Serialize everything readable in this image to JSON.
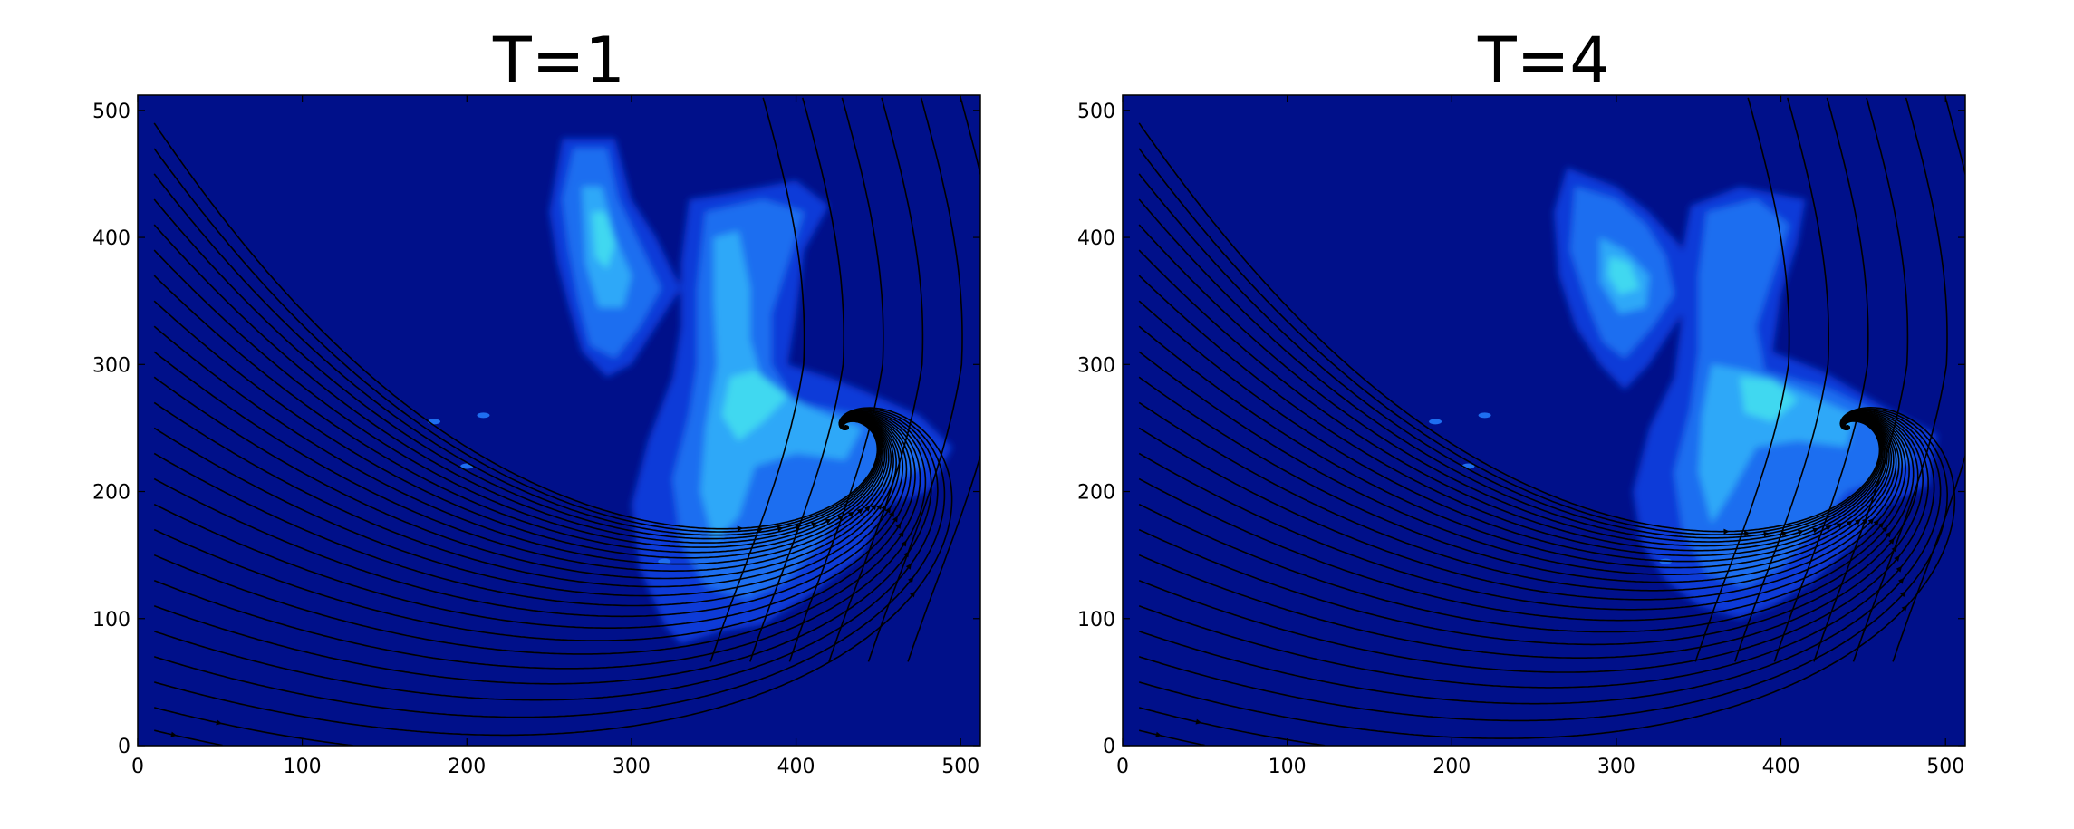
{
  "figure": {
    "panels": [
      {
        "title": "T=1",
        "xticks": [
          "0",
          "100",
          "200",
          "300",
          "400",
          "500"
        ],
        "yticks": [
          "0",
          "100",
          "200",
          "300",
          "400",
          "500"
        ]
      },
      {
        "title": "T=4",
        "xticks": [
          "0",
          "100",
          "200",
          "300",
          "400",
          "500"
        ],
        "yticks": [
          "0",
          "100",
          "200",
          "300",
          "400",
          "500"
        ]
      }
    ]
  },
  "colors": {
    "background_field": "#00108a",
    "low": "#0a3ad8",
    "mid": "#1e6ef0",
    "high": "#2ea8f8",
    "peak": "#3fd8f0",
    "streamline": "#000000"
  },
  "chart_data": [
    {
      "type": "heatmap",
      "overlay": "streamlines",
      "title": "T=1",
      "xlim": [
        0,
        512
      ],
      "ylim": [
        0,
        512
      ],
      "xticks": [
        0,
        100,
        200,
        300,
        400,
        500
      ],
      "yticks": [
        0,
        100,
        200,
        300,
        400,
        500
      ],
      "colormap": "jet",
      "grid": false,
      "regions": [
        {
          "name": "upper-left plume",
          "x_range": [
            255,
            330
          ],
          "y_range": [
            290,
            480
          ],
          "intensity": "high"
        },
        {
          "name": "upper-right plume",
          "x_range": [
            330,
            420
          ],
          "y_range": [
            300,
            450
          ],
          "intensity": "medium"
        },
        {
          "name": "central mass",
          "x_range": [
            300,
            490
          ],
          "y_range": [
            90,
            300
          ],
          "intensity": "medium-high"
        }
      ]
    },
    {
      "type": "heatmap",
      "overlay": "streamlines",
      "title": "T=4",
      "xlim": [
        0,
        512
      ],
      "ylim": [
        0,
        512
      ],
      "xticks": [
        0,
        100,
        200,
        300,
        400,
        500
      ],
      "yticks": [
        0,
        100,
        200,
        300,
        400,
        500
      ],
      "colormap": "jet",
      "grid": false,
      "regions": [
        {
          "name": "upper-left plume",
          "x_range": [
            260,
            340
          ],
          "y_range": [
            280,
            460
          ],
          "intensity": "high"
        },
        {
          "name": "upper-right plume",
          "x_range": [
            340,
            420
          ],
          "y_range": [
            330,
            440
          ],
          "intensity": "medium"
        },
        {
          "name": "central mass",
          "x_range": [
            310,
            495
          ],
          "y_range": [
            100,
            300
          ],
          "intensity": "medium-high"
        }
      ]
    }
  ]
}
